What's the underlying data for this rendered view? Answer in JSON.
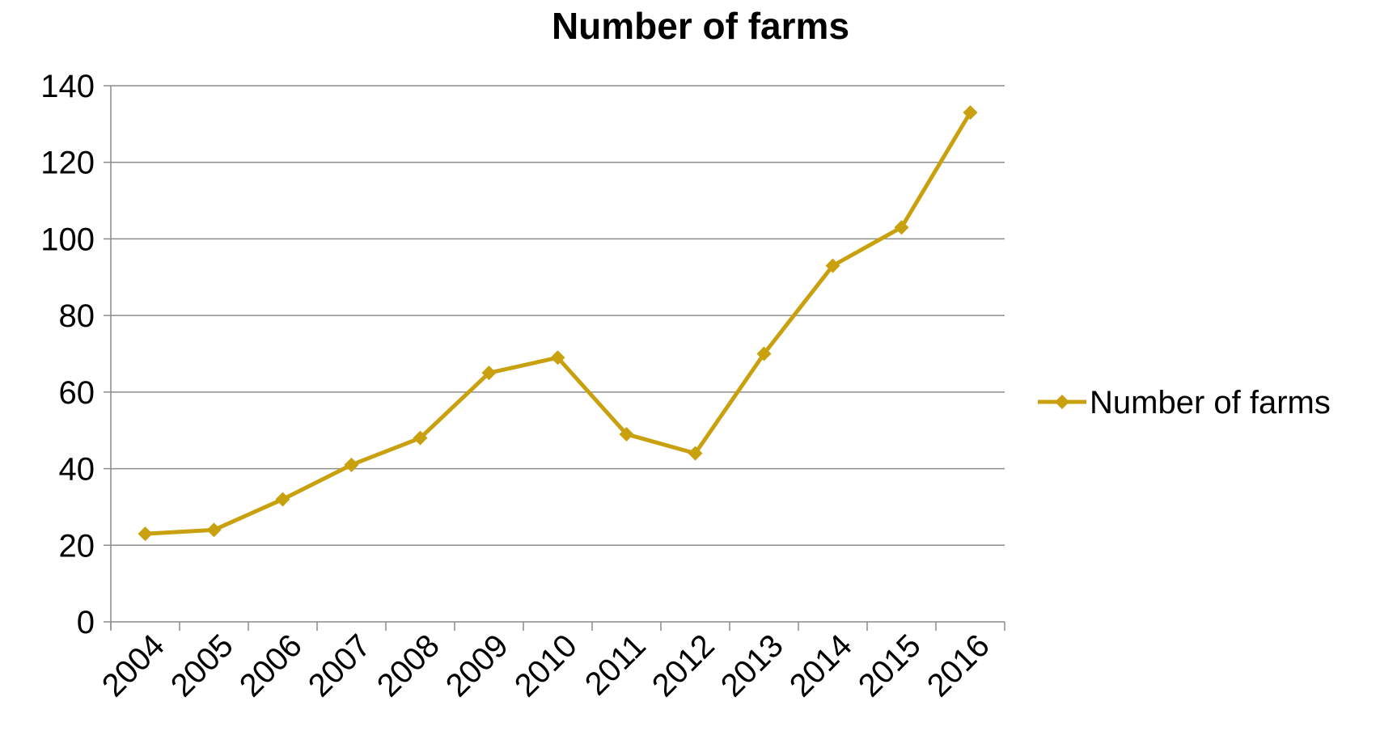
{
  "chart_data": {
    "type": "line",
    "title": "Number of farms",
    "xlabel": "",
    "ylabel": "",
    "categories": [
      "2004",
      "2005",
      "2006",
      "2007",
      "2008",
      "2009",
      "2010",
      "2011",
      "2012",
      "2013",
      "2014",
      "2015",
      "2016"
    ],
    "series": [
      {
        "name": "Number of farms",
        "values": [
          23,
          24,
          32,
          41,
          48,
          65,
          69,
          49,
          44,
          70,
          93,
          103,
          133
        ],
        "color": "#C9A00E",
        "marker": "diamond"
      }
    ],
    "ylim": [
      0,
      140
    ],
    "yticks": [
      0,
      20,
      40,
      60,
      80,
      100,
      120,
      140
    ],
    "grid": true,
    "legend_position": "right"
  }
}
